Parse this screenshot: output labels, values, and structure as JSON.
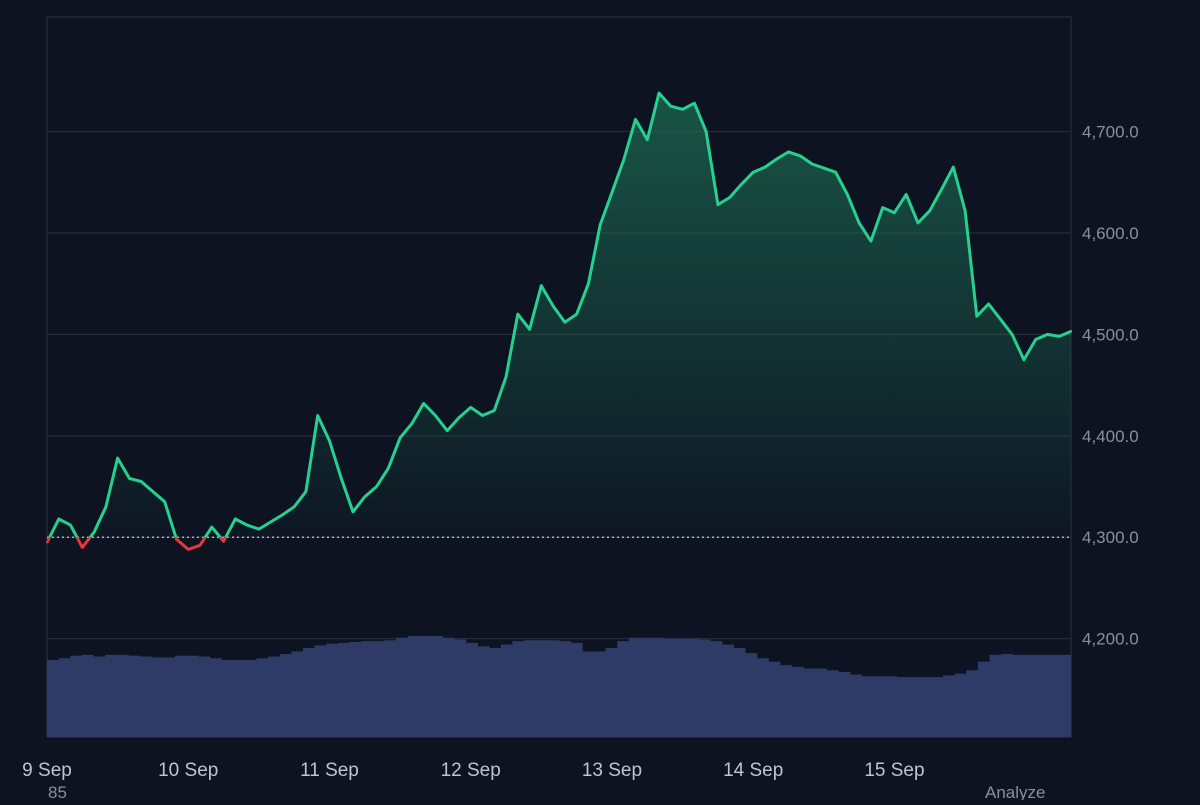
{
  "colors": {
    "background": "#0d1321",
    "line_up": "#26d08f",
    "line_down": "#e5383b",
    "fill_top": "#1d6b52",
    "grid": "#2a3040",
    "baseline": "#c8ccd4",
    "volume": "#2d3b66",
    "label": "#8a8f99",
    "xlabel": "#c0c4cc"
  },
  "footer": {
    "left_text": "85",
    "right_text": "Analyze"
  },
  "chart_data": {
    "type": "area",
    "title": "",
    "xlabel": "",
    "ylabel": "",
    "x_ticks": [
      "9 Sep",
      "10 Sep",
      "11 Sep",
      "12 Sep",
      "13 Sep",
      "14 Sep",
      "15 Sep"
    ],
    "y_ticks": [
      "4,200.0",
      "4,300.0",
      "4,400.0",
      "4,500.0",
      "4,600.0",
      "4,700.0"
    ],
    "ylim": [
      4103,
      4813
    ],
    "baseline": 4300,
    "grid": true,
    "y_axis_side": "right",
    "x": [
      "9 Sep 00:00",
      "9 Sep 02:00",
      "9 Sep 04:00",
      "9 Sep 06:00",
      "9 Sep 08:00",
      "9 Sep 10:00",
      "9 Sep 12:00",
      "9 Sep 14:00",
      "9 Sep 16:00",
      "9 Sep 18:00",
      "9 Sep 20:00",
      "9 Sep 22:00",
      "10 Sep 00:00",
      "10 Sep 02:00",
      "10 Sep 04:00",
      "10 Sep 06:00",
      "10 Sep 08:00",
      "10 Sep 10:00",
      "10 Sep 12:00",
      "10 Sep 14:00",
      "10 Sep 16:00",
      "10 Sep 18:00",
      "10 Sep 20:00",
      "10 Sep 22:00",
      "11 Sep 00:00",
      "11 Sep 02:00",
      "11 Sep 04:00",
      "11 Sep 06:00",
      "11 Sep 08:00",
      "11 Sep 10:00",
      "11 Sep 12:00",
      "11 Sep 14:00",
      "11 Sep 16:00",
      "11 Sep 18:00",
      "11 Sep 20:00",
      "11 Sep 22:00",
      "12 Sep 00:00",
      "12 Sep 02:00",
      "12 Sep 04:00",
      "12 Sep 06:00",
      "12 Sep 08:00",
      "12 Sep 10:00",
      "12 Sep 12:00",
      "12 Sep 14:00",
      "12 Sep 16:00",
      "12 Sep 18:00",
      "12 Sep 20:00",
      "12 Sep 22:00",
      "13 Sep 00:00",
      "13 Sep 02:00",
      "13 Sep 04:00",
      "13 Sep 06:00",
      "13 Sep 08:00",
      "13 Sep 10:00",
      "13 Sep 12:00",
      "13 Sep 14:00",
      "13 Sep 16:00",
      "13 Sep 18:00",
      "13 Sep 20:00",
      "13 Sep 22:00",
      "14 Sep 00:00",
      "14 Sep 02:00",
      "14 Sep 04:00",
      "14 Sep 06:00",
      "14 Sep 08:00",
      "14 Sep 10:00",
      "14 Sep 12:00",
      "14 Sep 14:00",
      "14 Sep 16:00",
      "14 Sep 18:00",
      "14 Sep 20:00",
      "14 Sep 22:00",
      "15 Sep 00:00",
      "15 Sep 02:00",
      "15 Sep 04:00",
      "15 Sep 06:00",
      "15 Sep 08:00",
      "15 Sep 10:00",
      "15 Sep 12:00",
      "15 Sep 14:00",
      "15 Sep 16:00",
      "15 Sep 18:00",
      "15 Sep 20:00",
      "15 Sep 22:00",
      "16 Sep 00:00",
      "16 Sep 02:00",
      "16 Sep 04:00",
      "16 Sep 06:00"
    ],
    "series": [
      {
        "values": [
          4295,
          4318,
          4312,
          4290,
          4305,
          4330,
          4378,
          4358,
          4355,
          4345,
          4335,
          4298,
          4288,
          4292,
          4310,
          4296,
          4318,
          4312,
          4308,
          4315,
          4322,
          4330,
          4345,
          4420,
          4395,
          4358,
          4325,
          4340,
          4350,
          4368,
          4398,
          4412,
          4432,
          4420,
          4405,
          4418,
          4428,
          4420,
          4425,
          4458,
          4520,
          4505,
          4548,
          4528,
          4512,
          4520,
          4550,
          4608,
          4640,
          4672,
          4712,
          4692,
          4738,
          4725,
          4722,
          4728,
          4700,
          4628,
          4635,
          4648,
          4660,
          4665,
          4673,
          4680,
          4676,
          4668,
          4664,
          4660,
          4638,
          4610,
          4592,
          4625,
          4620,
          4638,
          4610,
          4622,
          4643,
          4665,
          4622,
          4518,
          4530,
          4515,
          4500,
          4475,
          4495,
          4500,
          4498,
          4503
        ]
      }
    ],
    "volume": [
      90,
      92,
      95,
      96,
      94,
      96,
      96,
      95,
      94,
      93,
      93,
      95,
      95,
      94,
      92,
      90,
      90,
      90,
      92,
      94,
      97,
      100,
      104,
      107,
      109,
      110,
      111,
      112,
      112,
      113,
      116,
      118,
      118,
      118,
      116,
      114,
      110,
      106,
      104,
      108,
      112,
      113,
      113,
      113,
      112,
      110,
      100,
      100,
      104,
      112,
      116,
      116,
      116,
      115,
      115,
      115,
      114,
      112,
      108,
      104,
      98,
      92,
      88,
      84,
      82,
      80,
      80,
      78,
      76,
      73,
      71,
      71,
      71,
      70,
      70,
      70,
      70,
      72,
      74,
      78,
      88,
      96,
      97,
      96,
      96,
      96,
      96,
      96
    ]
  }
}
